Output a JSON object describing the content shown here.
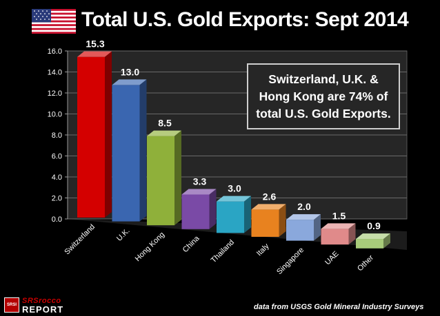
{
  "title": "Total U.S. Gold Exports: Sept 2014",
  "callout": {
    "lines": [
      "Switzerland, U.K. &",
      "Hong Kong are 74% of",
      "total U.S. Gold Exports."
    ]
  },
  "source": "data from USGS Gold Mineral Industry Surveys",
  "logo": {
    "badge": "SRSI",
    "top": "SRSrocco",
    "bottom": "REPORT"
  },
  "colors": {
    "background": "#000000",
    "bars": [
      "#d40000",
      "#3a66b0",
      "#8fb03a",
      "#7a4aa6",
      "#2aa5c4",
      "#e8821f",
      "#8aa8dc",
      "#e08a8a",
      "#a8cc7a"
    ]
  },
  "chart_data": {
    "type": "bar",
    "title": "Total U.S. Gold Exports: Sept 2014",
    "categories": [
      "Switzerland",
      "U.K.",
      "Hong Kong",
      "China",
      "Thailand",
      "Italy",
      "Singapore",
      "UAE",
      "Other"
    ],
    "values": [
      15.3,
      13.0,
      8.5,
      3.3,
      3.0,
      2.6,
      2.0,
      1.5,
      0.9
    ],
    "value_labels": [
      "15.3",
      "13.0",
      "8.5",
      "3.3",
      "3.0",
      "2.6",
      "2.0",
      "1.5",
      "0.9"
    ],
    "ylim": [
      0,
      16
    ],
    "yticks": [
      "0.0",
      "2.0",
      "4.0",
      "6.0",
      "8.0",
      "10.0",
      "12.0",
      "14.0",
      "16.0"
    ],
    "xlabel": "",
    "ylabel": "",
    "grid": true,
    "legend": "none"
  }
}
